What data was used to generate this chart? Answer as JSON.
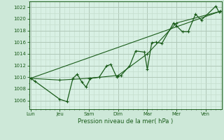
{
  "background_color": "#cde8d8",
  "plot_bg_color": "#d8f0e4",
  "grid_major_color": "#b0c8b8",
  "grid_minor_color": "#c4dece",
  "line_color": "#1a5c1a",
  "marker_color": "#1a5c1a",
  "axis_label_color": "#1a5c1a",
  "tick_color": "#1a5c1a",
  "xlabel": "Pression niveau de la mer( hPa )",
  "ylim": [
    1004.5,
    1023.0
  ],
  "yticks": [
    1006,
    1008,
    1010,
    1012,
    1014,
    1016,
    1018,
    1020,
    1022
  ],
  "x_day_labels": [
    "Lun",
    "Jeu",
    "Sam",
    "Dim",
    "Mar",
    "Mer",
    "Ven"
  ],
  "x_day_positions": [
    0,
    1,
    2,
    3,
    4,
    5,
    6
  ],
  "xlim": [
    -0.05,
    6.55
  ],
  "series1": [
    [
      0.0,
      1009.8
    ],
    [
      0.15,
      1009.3
    ],
    [
      1.0,
      1006.2
    ],
    [
      1.25,
      1005.8
    ],
    [
      1.45,
      1009.8
    ],
    [
      1.6,
      1010.5
    ],
    [
      1.75,
      1009.2
    ],
    [
      1.9,
      1008.3
    ],
    [
      2.05,
      1009.8
    ],
    [
      2.35,
      1010.0
    ],
    [
      2.6,
      1011.9
    ],
    [
      2.75,
      1012.2
    ],
    [
      2.95,
      1010.0
    ],
    [
      3.1,
      1010.3
    ],
    [
      3.4,
      1012.0
    ],
    [
      3.6,
      1014.5
    ],
    [
      3.9,
      1014.3
    ],
    [
      4.0,
      1011.3
    ],
    [
      4.15,
      1015.9
    ],
    [
      4.3,
      1016.0
    ],
    [
      4.5,
      1015.8
    ],
    [
      4.9,
      1019.3
    ],
    [
      5.0,
      1018.8
    ],
    [
      5.2,
      1017.8
    ],
    [
      5.4,
      1017.8
    ],
    [
      5.65,
      1020.8
    ],
    [
      5.85,
      1019.8
    ],
    [
      6.35,
      1022.2
    ],
    [
      6.45,
      1021.2
    ],
    [
      6.5,
      1021.3
    ]
  ],
  "trend_line": [
    [
      0.0,
      1009.8
    ],
    [
      6.5,
      1021.3
    ]
  ],
  "series2": [
    [
      0.0,
      1009.8
    ],
    [
      1.0,
      1009.5
    ],
    [
      2.0,
      1009.8
    ],
    [
      3.0,
      1010.3
    ],
    [
      4.0,
      1014.0
    ],
    [
      5.0,
      1019.3
    ],
    [
      6.5,
      1021.3
    ]
  ]
}
